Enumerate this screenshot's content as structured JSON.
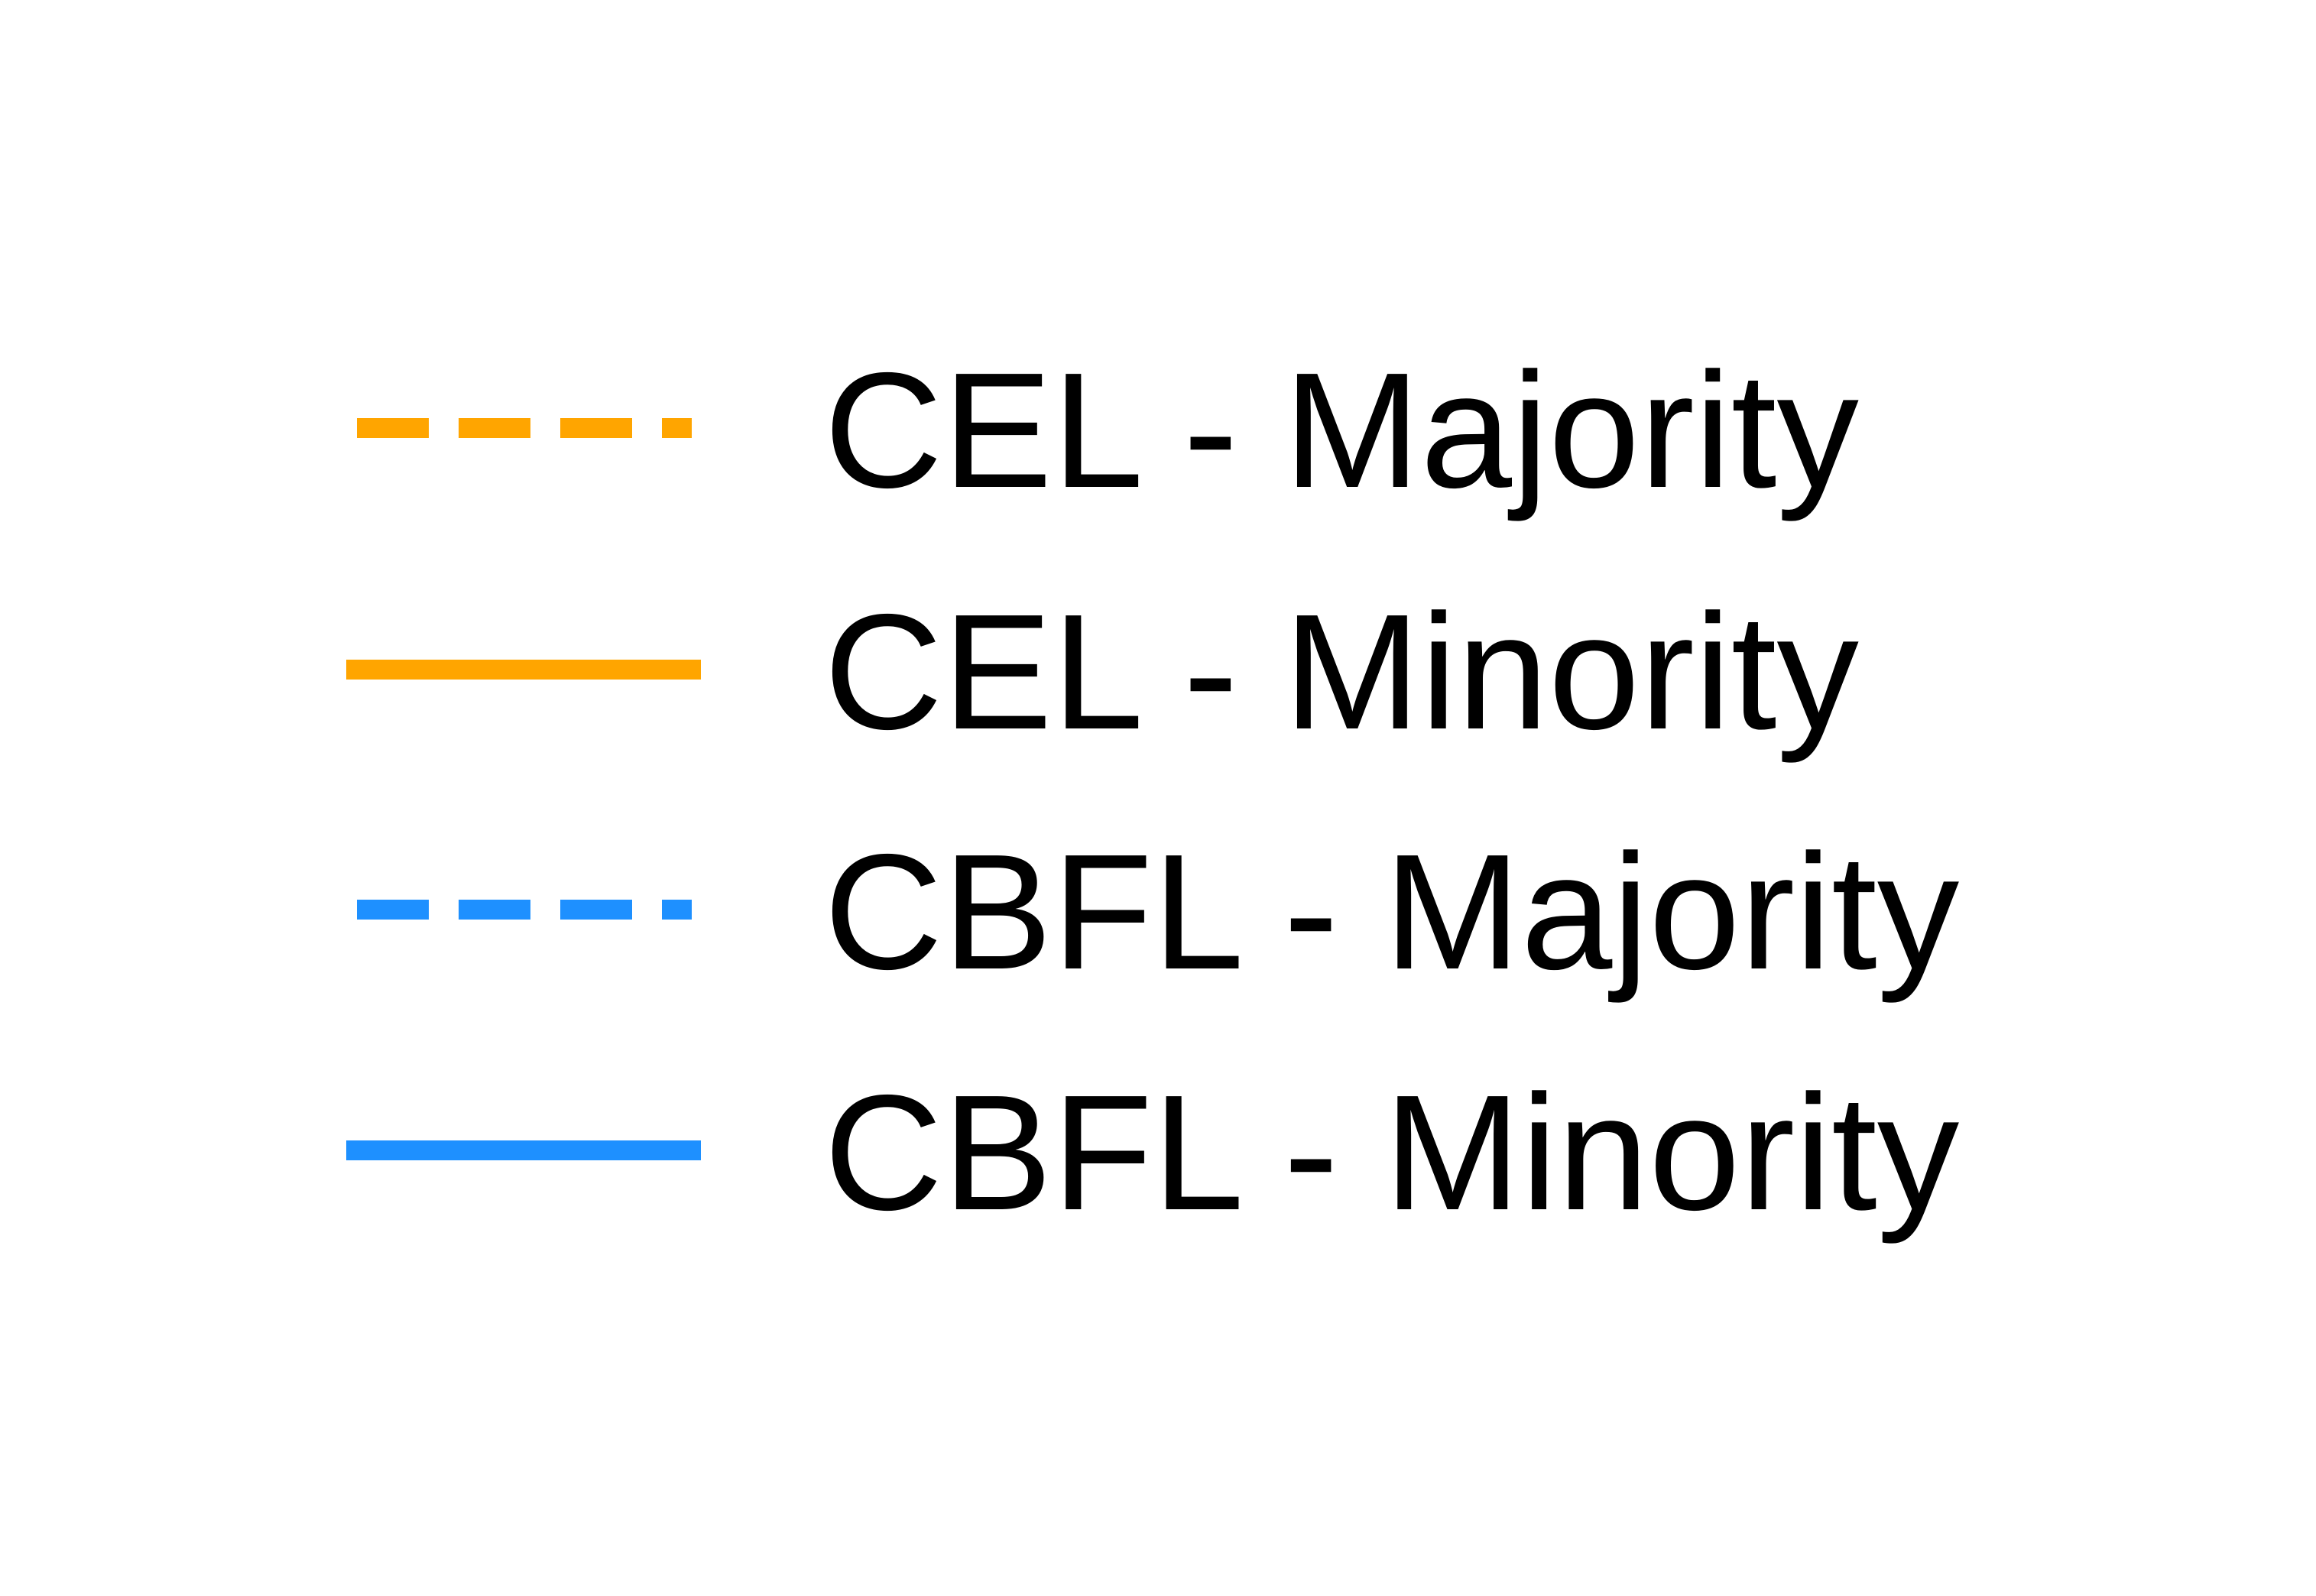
{
  "chart_data": {
    "type": "legend",
    "legend": {
      "entries": [
        {
          "label": "CEL - Majority",
          "color": "#FFA500",
          "line_style": "dashed"
        },
        {
          "label": "CEL - Minority",
          "color": "#FFA500",
          "line_style": "solid"
        },
        {
          "label": "CBFL - Majority",
          "color": "#1E90FF",
          "line_style": "dashed"
        },
        {
          "label": "CBFL - Minority",
          "color": "#1E90FF",
          "line_style": "solid"
        }
      ]
    }
  }
}
